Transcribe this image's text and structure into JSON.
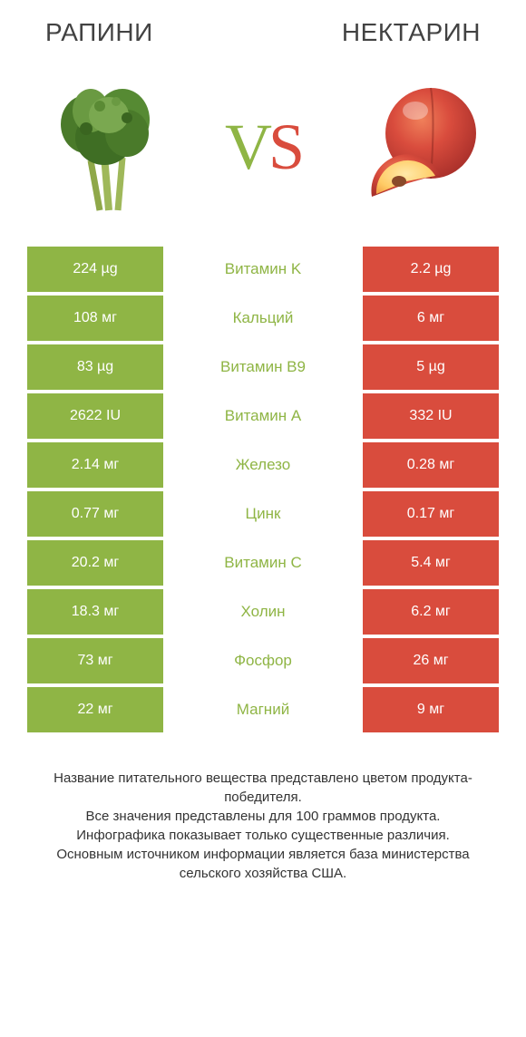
{
  "header": {
    "left_title": "РАПИНИ",
    "left_color": "#424242",
    "right_title": "НЕКТАРИН",
    "right_color": "#424242"
  },
  "vs": {
    "v_color": "#8fb545",
    "s_color": "#d94c3d"
  },
  "colors": {
    "left_cell": "#8fb545",
    "right_cell": "#d94c3d",
    "mid_text_left": "#8fb545",
    "background": "#ffffff"
  },
  "table": {
    "rows": [
      {
        "left": "224 µg",
        "mid": "Витамин K",
        "right": "2.2 µg",
        "mid_color": "#8fb545"
      },
      {
        "left": "108 мг",
        "mid": "Кальций",
        "right": "6 мг",
        "mid_color": "#8fb545"
      },
      {
        "left": "83 µg",
        "mid": "Витамин B9",
        "right": "5 µg",
        "mid_color": "#8fb545"
      },
      {
        "left": "2622 IU",
        "mid": "Витамин A",
        "right": "332 IU",
        "mid_color": "#8fb545"
      },
      {
        "left": "2.14 мг",
        "mid": "Железо",
        "right": "0.28 мг",
        "mid_color": "#8fb545"
      },
      {
        "left": "0.77 мг",
        "mid": "Цинк",
        "right": "0.17 мг",
        "mid_color": "#8fb545"
      },
      {
        "left": "20.2 мг",
        "mid": "Витамин C",
        "right": "5.4 мг",
        "mid_color": "#8fb545"
      },
      {
        "left": "18.3 мг",
        "mid": "Холин",
        "right": "6.2 мг",
        "mid_color": "#8fb545"
      },
      {
        "left": "73 мг",
        "mid": "Фосфор",
        "right": "26 мг",
        "mid_color": "#8fb545"
      },
      {
        "left": "22 мг",
        "mid": "Магний",
        "right": "9 мг",
        "mid_color": "#8fb545"
      }
    ]
  },
  "footer": {
    "text": "Название питательного вещества представлено цветом продукта-победителя.\nВсе значения представлены для 100 граммов продукта.\nИнфографика показывает только существенные различия.\nОсновным источником информации является база министерства сельского хозяйства США."
  }
}
